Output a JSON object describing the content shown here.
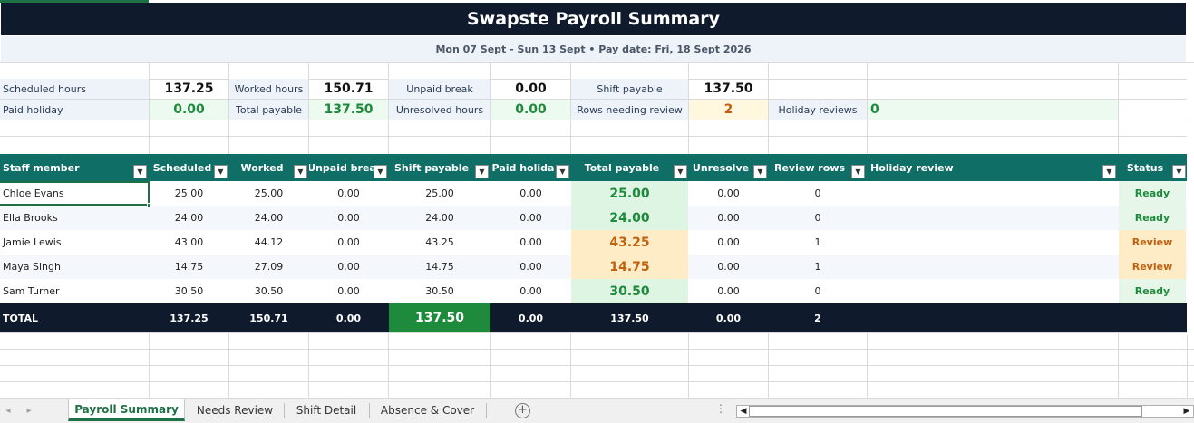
{
  "title": "Swapste Payroll Summary",
  "subtitle": "Mon 07 Sept - Sun 13 Sept  •  Pay date: Fri, 18 Sept 2026",
  "summary": {
    "scheduled_hours": {
      "label": "Scheduled hours",
      "value": "137.25"
    },
    "worked_hours": {
      "label": "Worked hours",
      "value": "150.71"
    },
    "unpaid_break": {
      "label": "Unpaid break",
      "value": "0.00"
    },
    "shift_payable": {
      "label": "Shift payable",
      "value": "137.50"
    },
    "paid_holiday": {
      "label": "Paid holiday",
      "value": "0.00"
    },
    "total_payable": {
      "label": "Total payable",
      "value": "137.50"
    },
    "unresolved_hours": {
      "label": "Unresolved hours",
      "value": "0.00"
    },
    "rows_needing_review": {
      "label": "Rows needing review",
      "value": "2"
    },
    "holiday_reviews": {
      "label": "Holiday reviews",
      "value": "0"
    }
  },
  "table": {
    "columns": [
      "Staff member",
      "Scheduled",
      "Worked",
      "Unpaid brea",
      "Shift payable",
      "Paid holida",
      "Total payable",
      "Unresolve",
      "Review rows",
      "Holiday review",
      "Status"
    ],
    "rows": [
      {
        "name": "Chloe Evans",
        "scheduled": "25.00",
        "worked": "25.00",
        "unpaid": "0.00",
        "shift": "25.00",
        "holiday": "0.00",
        "total": "25.00",
        "unresolved": "0.00",
        "review": "0",
        "holiday_review": "",
        "status": "Ready"
      },
      {
        "name": "Ella Brooks",
        "scheduled": "24.00",
        "worked": "24.00",
        "unpaid": "0.00",
        "shift": "24.00",
        "holiday": "0.00",
        "total": "24.00",
        "unresolved": "0.00",
        "review": "0",
        "holiday_review": "",
        "status": "Ready"
      },
      {
        "name": "Jamie Lewis",
        "scheduled": "43.00",
        "worked": "44.12",
        "unpaid": "0.00",
        "shift": "43.25",
        "holiday": "0.00",
        "total": "43.25",
        "unresolved": "0.00",
        "review": "1",
        "holiday_review": "",
        "status": "Review"
      },
      {
        "name": "Maya Singh",
        "scheduled": "14.75",
        "worked": "27.09",
        "unpaid": "0.00",
        "shift": "14.75",
        "holiday": "0.00",
        "total": "14.75",
        "unresolved": "0.00",
        "review": "1",
        "holiday_review": "",
        "status": "Review"
      },
      {
        "name": "Sam Turner",
        "scheduled": "30.50",
        "worked": "30.50",
        "unpaid": "0.00",
        "shift": "30.50",
        "holiday": "0.00",
        "total": "30.50",
        "unresolved": "0.00",
        "review": "0",
        "holiday_review": "",
        "status": "Ready"
      }
    ],
    "totals": {
      "label": "TOTAL",
      "scheduled": "137.25",
      "worked": "150.71",
      "unpaid": "0.00",
      "shift": "137.50",
      "holiday": "0.00",
      "total": "137.50",
      "unresolved": "0.00",
      "review": "2"
    }
  },
  "sheet_tabs": [
    "Payroll Summary",
    "Needs Review",
    "Shift Detail",
    "Absence & Cover"
  ],
  "active_tab": "Payroll Summary",
  "icons": {
    "filter": "filter-dropdown-icon",
    "add_sheet": "plus-circle-icon"
  },
  "colors": {
    "title_bg": "#0f1a2c",
    "header_bg": "#0f6f67",
    "ready": "#1e8a3c",
    "review": "#c0610f",
    "active_tab": "#1e7145"
  }
}
